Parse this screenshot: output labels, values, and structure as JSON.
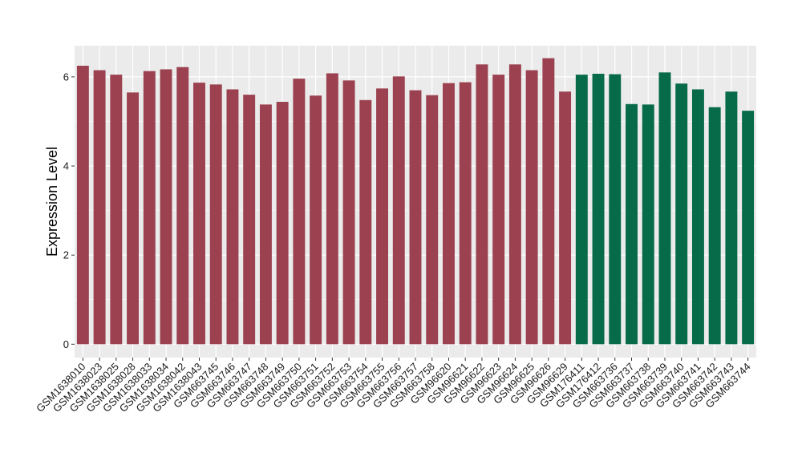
{
  "chart_data": {
    "type": "bar",
    "xlabel": "",
    "ylabel": "Expression Level",
    "ylim": [
      -0.3,
      6.7
    ],
    "yticks": [
      0,
      2,
      4,
      6
    ],
    "grid": true,
    "legend": "none",
    "background_color": "#ebebeb",
    "gridline_color": "#ffffff",
    "categories": [
      "GSM1638010",
      "GSM1638023",
      "GSM1638025",
      "GSM1638028",
      "GSM1638033",
      "GSM1638034",
      "GSM1638042",
      "GSM1638043",
      "GSM663745",
      "GSM663746",
      "GSM663747",
      "GSM663748",
      "GSM663749",
      "GSM663750",
      "GSM663751",
      "GSM663752",
      "GSM663753",
      "GSM663754",
      "GSM663755",
      "GSM663756",
      "GSM663757",
      "GSM663758",
      "GSM96620",
      "GSM96621",
      "GSM96622",
      "GSM96623",
      "GSM96624",
      "GSM96625",
      "GSM96626",
      "GSM96629",
      "GSM176411",
      "GSM176412",
      "GSM663736",
      "GSM663737",
      "GSM663738",
      "GSM663739",
      "GSM663740",
      "GSM663741",
      "GSM663742",
      "GSM663743",
      "GSM663744"
    ],
    "values": [
      6.25,
      6.15,
      6.05,
      5.65,
      6.13,
      6.17,
      6.22,
      5.87,
      5.83,
      5.72,
      5.6,
      5.38,
      5.44,
      5.96,
      5.58,
      6.08,
      5.92,
      5.48,
      5.74,
      6.01,
      5.7,
      5.59,
      5.86,
      5.88,
      6.28,
      6.05,
      6.28,
      6.15,
      6.42,
      5.67,
      6.05,
      6.07,
      6.06,
      5.39,
      5.38,
      6.1,
      5.85,
      5.72,
      5.32,
      5.67,
      5.24
    ],
    "bar_colors": [
      "#9b4150",
      "#9b4150",
      "#9b4150",
      "#9b4150",
      "#9b4150",
      "#9b4150",
      "#9b4150",
      "#9b4150",
      "#9b4150",
      "#9b4150",
      "#9b4150",
      "#9b4150",
      "#9b4150",
      "#9b4150",
      "#9b4150",
      "#9b4150",
      "#9b4150",
      "#9b4150",
      "#9b4150",
      "#9b4150",
      "#9b4150",
      "#9b4150",
      "#9b4150",
      "#9b4150",
      "#9b4150",
      "#9b4150",
      "#9b4150",
      "#9b4150",
      "#9b4150",
      "#9b4150",
      "#076a48",
      "#076a48",
      "#076a48",
      "#076a48",
      "#076a48",
      "#076a48",
      "#076a48",
      "#076a48",
      "#076a48",
      "#076a48",
      "#076a48"
    ]
  }
}
